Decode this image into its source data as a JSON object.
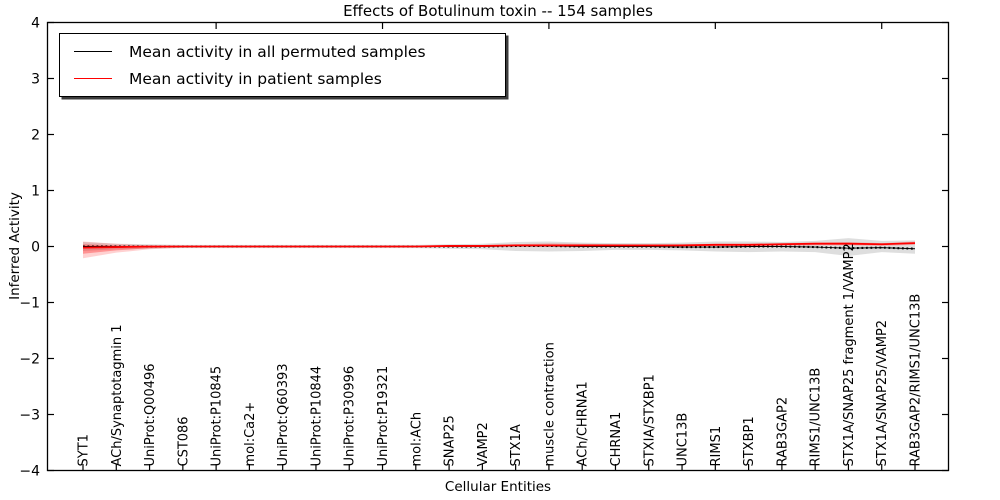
{
  "chart_data": {
    "type": "line",
    "title": "Effects of Botulinum toxin -- 154 samples",
    "xlabel": "Cellular Entities",
    "ylabel": "Inferred Activity",
    "ylim": [
      -4,
      4
    ],
    "yticks": [
      4,
      3,
      2,
      1,
      0,
      -1,
      -2,
      -3,
      -4
    ],
    "grid": false,
    "legend_position": "upper left",
    "categories": [
      "SYT1",
      "ACh/Synaptotagmin 1",
      "UniProt:Q00496",
      "CST086",
      "UniProt:P10845",
      "mol:Ca2+",
      "UniProt:Q60393",
      "UniProt:P10844",
      "UniProt:P30996",
      "UniProt:P19321",
      "mol:ACh",
      "SNAP25",
      "VAMP2",
      "STX1A",
      "muscle contraction",
      "ACh/CHRNA1",
      "CHRNA1",
      "STXIA/STXBP1",
      "UNC13B",
      "RIMS1",
      "STXBP1",
      "RAB3GAP2",
      "RIMS1/UNC13B",
      "STX1A/SNAP25 fragment 1/VAMP2",
      "STX1A/SNAP25/VAMP2",
      "RAB3GAP2/RIMS1/UNC13B"
    ],
    "unlabeled_top_tick_indices": [
      4,
      9,
      14,
      19,
      24
    ],
    "series": [
      {
        "name": "Mean activity in all permuted samples",
        "color": "#000000",
        "line_style": "solid-with-dot-markers",
        "values": [
          0,
          0,
          0,
          0,
          0,
          0,
          0,
          0,
          0,
          0,
          0,
          0,
          0,
          0.01,
          0.01,
          0,
          0,
          0,
          -0.01,
          -0.01,
          0,
          0,
          -0.01,
          -0.03,
          -0.02,
          -0.04
        ]
      },
      {
        "name": "Mean activity in patient samples",
        "color": "#ff0000",
        "line_style": "solid",
        "values": [
          -0.02,
          -0.01,
          0,
          0,
          0,
          0,
          0,
          0,
          0,
          0,
          0,
          0.01,
          0.01,
          0.02,
          0.02,
          0.02,
          0.02,
          0.02,
          0.02,
          0.03,
          0.03,
          0.04,
          0.05,
          0.05,
          0.04,
          0.06
        ]
      }
    ],
    "bands": [
      {
        "name": "permuted-sample-range",
        "color": "#000000",
        "opacity": 0.13,
        "upper": [
          0.08,
          0.05,
          0.04,
          0.03,
          0.03,
          0.03,
          0.03,
          0.03,
          0.03,
          0.03,
          0.03,
          0.04,
          0.05,
          0.08,
          0.09,
          0.07,
          0.06,
          0.06,
          0.07,
          0.09,
          0.09,
          0.08,
          0.1,
          0.15,
          0.1,
          0.11
        ],
        "lower": [
          -0.08,
          -0.05,
          -0.04,
          -0.03,
          -0.03,
          -0.03,
          -0.03,
          -0.03,
          -0.03,
          -0.03,
          -0.03,
          -0.04,
          -0.05,
          -0.08,
          -0.09,
          -0.08,
          -0.06,
          -0.06,
          -0.07,
          -0.09,
          -0.1,
          -0.09,
          -0.1,
          -0.17,
          -0.1,
          -0.13
        ]
      },
      {
        "name": "patient-sample-range-outer",
        "color": "#ff0000",
        "opacity": 0.18,
        "upper": [
          0.09,
          0.05,
          0.02,
          0.01,
          0.01,
          0.01,
          0.01,
          0.01,
          0.01,
          0.01,
          0.01,
          0.02,
          0.02,
          0.04,
          0.06,
          0.05,
          0.04,
          0.03,
          0.04,
          0.05,
          0.05,
          0.06,
          0.07,
          0.08,
          0.06,
          0.09
        ],
        "lower": [
          -0.21,
          -0.11,
          -0.05,
          -0.02,
          -0.01,
          -0.01,
          -0.01,
          -0.01,
          -0.01,
          -0.01,
          -0.01,
          0,
          0,
          0,
          -0.01,
          -0.01,
          0,
          0,
          0,
          0.01,
          0.01,
          0.01,
          0.02,
          0.02,
          0.01,
          0.03
        ]
      },
      {
        "name": "patient-sample-range-inner",
        "color": "#ff0000",
        "opacity": 0.3,
        "upper": [
          0.04,
          0.02,
          0.01,
          0.01,
          0.01,
          0.01,
          0.01,
          0.01,
          0.01,
          0.01,
          0.01,
          0.02,
          0.02,
          0.03,
          0.03,
          0.03,
          0.03,
          0.03,
          0.03,
          0.04,
          0.04,
          0.05,
          0.06,
          0.06,
          0.05,
          0.07
        ],
        "lower": [
          -0.13,
          -0.07,
          -0.03,
          -0.01,
          -0.01,
          -0.01,
          -0.01,
          -0.01,
          -0.01,
          -0.01,
          0,
          0,
          0,
          0.01,
          0.01,
          0.01,
          0.01,
          0.01,
          0.01,
          0.02,
          0.02,
          0.03,
          0.04,
          0.04,
          0.03,
          0.05
        ]
      }
    ]
  }
}
